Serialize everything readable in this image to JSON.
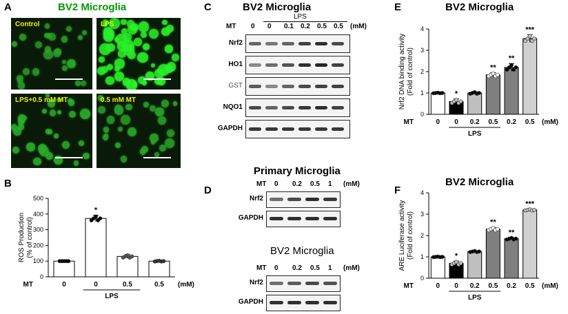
{
  "panel_a": {
    "letter": "A",
    "title": "BV2 Microglia",
    "images": [
      {
        "label": "Control",
        "density": 0.3
      },
      {
        "label": "LPS",
        "density": 1.0
      },
      {
        "label": "LPS+0.5 mM MT",
        "density": 0.45
      },
      {
        "label": "0.5 mM MT",
        "density": 0.35
      }
    ]
  },
  "panel_b": {
    "letter": "B",
    "ylabel": [
      "ROS Production",
      "(% of control)"
    ]
  },
  "panel_c": {
    "letter": "C",
    "title": "BV2 Microglia",
    "lps": "LPS",
    "mt": "MT",
    "doses": [
      "0",
      "0",
      "0.1",
      "0.2",
      "0.5",
      "0.5"
    ],
    "unit": "(mM)",
    "rows": [
      {
        "name": "Nrf2",
        "bold": true,
        "intensity": [
          0.55,
          0.45,
          0.55,
          0.75,
          0.85,
          0.7
        ]
      },
      {
        "name": "HO1",
        "bold": true,
        "intensity": [
          0.35,
          0.5,
          0.65,
          0.85,
          0.9,
          0.75
        ]
      },
      {
        "name": "GST",
        "bold": false,
        "intensity": [
          0.6,
          0.35,
          0.55,
          0.7,
          0.75,
          0.75
        ]
      },
      {
        "name": "NQO1",
        "bold": true,
        "intensity": [
          0.7,
          0.55,
          0.7,
          0.8,
          0.85,
          0.75
        ]
      },
      {
        "name": "GAPDH",
        "bold": true,
        "intensity": [
          0.8,
          0.8,
          0.8,
          0.8,
          0.8,
          0.8
        ]
      }
    ]
  },
  "panel_d": {
    "letter": "D",
    "title1": "Primary Microglia",
    "title2": "BV2 Microglia",
    "mt": "MT",
    "doses": [
      "0",
      "0.2",
      "0.5",
      "1"
    ],
    "unit": "(mM)",
    "rows1": [
      {
        "name": "Nrf2",
        "intensity": [
          0.5,
          0.7,
          0.85,
          0.8
        ]
      },
      {
        "name": "GAPDH",
        "intensity": [
          0.85,
          0.85,
          0.85,
          0.85
        ]
      }
    ],
    "rows2": [
      {
        "name": "Nrf2",
        "intensity": [
          0.5,
          0.6,
          0.7,
          0.65
        ]
      },
      {
        "name": "GAPDH",
        "intensity": [
          0.85,
          0.85,
          0.85,
          0.85
        ]
      }
    ]
  },
  "panel_e": {
    "letter": "E",
    "title": "BV2 Microglia",
    "ylabel": [
      "Nrf2 DNA binding activity",
      "(Fold of control)"
    ]
  },
  "panel_f": {
    "letter": "F",
    "title": "BV2 Microglia",
    "ylabel": [
      "ARE Luciferase activity",
      "(Fold of control)"
    ]
  },
  "chart_data": [
    {
      "id": "B",
      "type": "bar",
      "title": "",
      "ylabel": "ROS Production (% of control)",
      "ylim": [
        0,
        500
      ],
      "yticks": [
        "0",
        "100",
        "200",
        "300",
        "400",
        "500"
      ],
      "x_row_label": "MT",
      "categories": [
        "0",
        "0",
        "0.5",
        "0.5"
      ],
      "unit_label": "(mM)",
      "group_label": "LPS",
      "group_span": [
        1,
        2
      ],
      "values": [
        100,
        372,
        130,
        100
      ],
      "errors": [
        0,
        20,
        12,
        4
      ],
      "fills": [
        "#ffffff",
        "#ffffff",
        "#ffffff",
        "#ffffff"
      ],
      "markers": [
        "#000000",
        "#000000",
        "#555555",
        "#333333"
      ],
      "significance": [
        "",
        "*",
        "",
        ""
      ]
    },
    {
      "id": "E",
      "type": "bar",
      "title": "BV2 Microglia",
      "ylabel": "Nrf2 DNA binding activity (Fold of control)",
      "ylim": [
        0,
        4
      ],
      "yticks": [
        "0",
        "1",
        "2",
        "3",
        "4"
      ],
      "x_row_label": "MT",
      "categories": [
        "0",
        "0",
        "0.2",
        "0.5",
        "0.2",
        "0.5"
      ],
      "unit_label": "(mM)",
      "group_label": "LPS",
      "group_span": [
        1,
        3
      ],
      "values": [
        1.0,
        0.6,
        1.0,
        1.85,
        2.2,
        3.55
      ],
      "errors": [
        0.02,
        0.12,
        0.06,
        0.1,
        0.18,
        0.18
      ],
      "fills": [
        "#ffffff",
        "#000000",
        "#bfbfbf",
        "#7f7f7f",
        "#7f7f7f",
        "#d0d0d0"
      ],
      "markers": [
        "#000000",
        "#bfbfbf",
        "#000000",
        "#ffffff",
        "#000000",
        "#bfbfbf"
      ],
      "significance": [
        "",
        "*",
        "",
        "**",
        "**",
        "***"
      ]
    },
    {
      "id": "F",
      "type": "bar",
      "title": "BV2 Microglia",
      "ylabel": "ARE Luciferase activity (Fold of control)",
      "ylim": [
        0,
        4
      ],
      "yticks": [
        "0",
        "1",
        "2",
        "3",
        "4"
      ],
      "x_row_label": "MT",
      "categories": [
        "0",
        "0",
        "0.2",
        "0.5",
        "0.2",
        "0.5"
      ],
      "unit_label": "(mM)",
      "group_label": "LPS",
      "group_span": [
        1,
        3
      ],
      "values": [
        1.0,
        0.7,
        1.25,
        2.3,
        1.85,
        3.2
      ],
      "errors": [
        0.02,
        0.1,
        0.04,
        0.08,
        0.06,
        0.04
      ],
      "fills": [
        "#ffffff",
        "#000000",
        "#bfbfbf",
        "#7f7f7f",
        "#7f7f7f",
        "#d0d0d0"
      ],
      "markers": [
        "#000000",
        "#bfbfbf",
        "#000000",
        "#ffffff",
        "#000000",
        "#bfbfbf"
      ],
      "significance": [
        "",
        "*",
        "",
        "**",
        "**",
        "***"
      ]
    }
  ]
}
